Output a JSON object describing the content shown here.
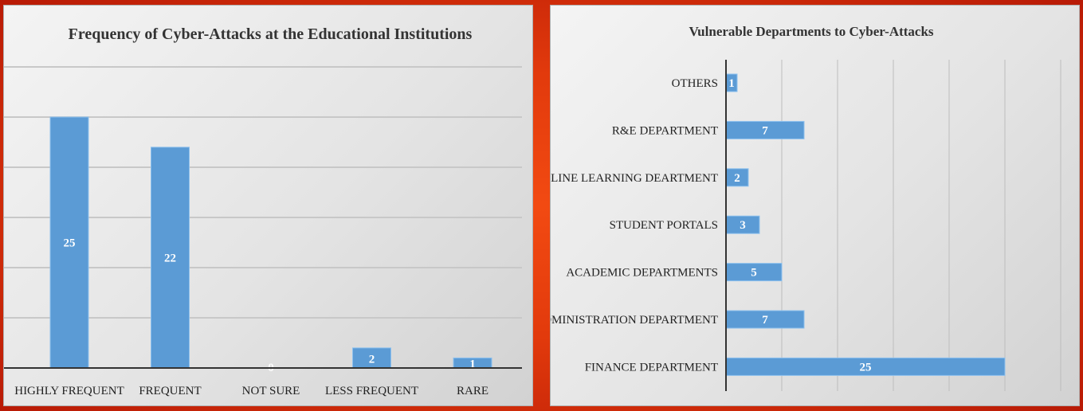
{
  "chart_data": [
    {
      "type": "bar",
      "orientation": "vertical",
      "title": "Frequency of Cyber-Attacks at the Educational Institutions",
      "categories": [
        "HIGHLY FREQUENT",
        "FREQUENT",
        "NOT SURE",
        "LESS FREQUENT",
        "RARE"
      ],
      "values": [
        25,
        22,
        0,
        2,
        1
      ],
      "ylim": [
        0,
        30
      ],
      "grid": true,
      "bar_color": "#5b9bd5",
      "data_labels": [
        "25",
        "22",
        "0",
        "2",
        "1"
      ]
    },
    {
      "type": "bar",
      "orientation": "horizontal",
      "title": "Vulnerable Departments to Cyber-Attacks",
      "categories": [
        "OTHERS",
        "R&E DEPARTMENT",
        "ONLINE LEARNING DEARTMENT",
        "STUDENT PORTALS",
        "ACADEMIC DEPARTMENTS",
        "ADMINISTRATION DEPARTMENT",
        "FINANCE DEPARTMENT"
      ],
      "values": [
        1,
        7,
        2,
        3,
        5,
        7,
        25
      ],
      "xlim": [
        0,
        30
      ],
      "grid": true,
      "bar_color": "#5b9bd5",
      "data_labels": [
        "1",
        "7",
        "2",
        "3",
        "5",
        "7",
        "25"
      ]
    }
  ]
}
